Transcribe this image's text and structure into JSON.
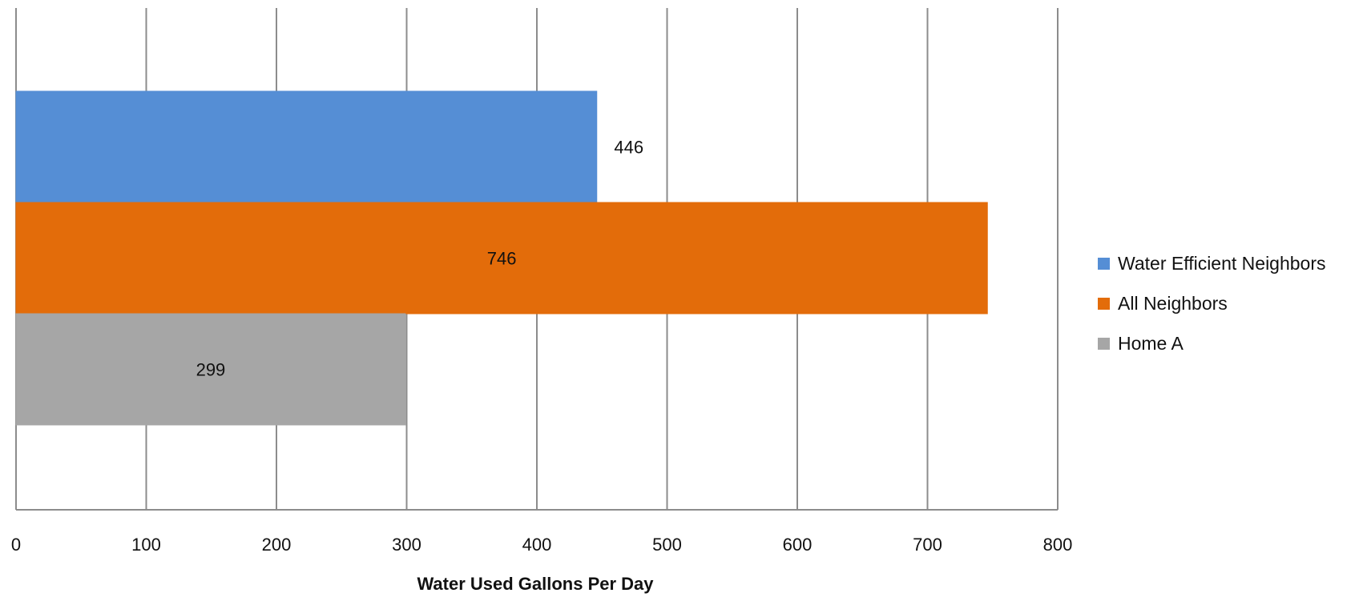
{
  "chart_data": {
    "type": "bar",
    "orientation": "horizontal",
    "xlabel": "Water Used Gallons Per Day",
    "xlim": [
      0,
      800
    ],
    "xticks": [
      0,
      100,
      200,
      300,
      400,
      500,
      600,
      700,
      800
    ],
    "grid": true,
    "legend_position": "right",
    "series": [
      {
        "name": "Water Efficient Neighbors",
        "value": 446,
        "label": "446",
        "color": "#558ed5"
      },
      {
        "name": "All Neighbors",
        "value": 746,
        "label": "746",
        "color": "#e36c0a"
      },
      {
        "name": "Home A",
        "value": 299,
        "label": "299",
        "color": "#a6a6a6"
      }
    ]
  }
}
